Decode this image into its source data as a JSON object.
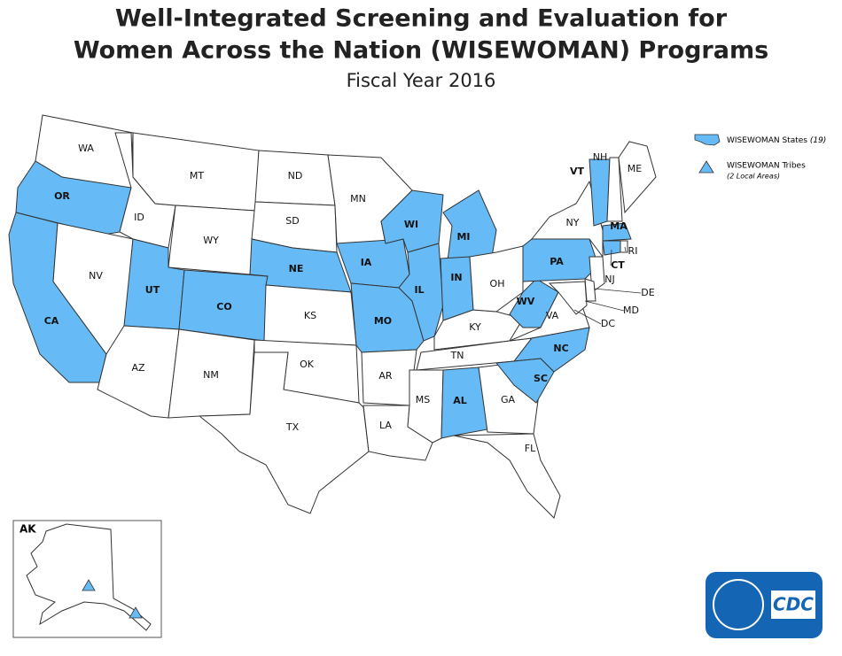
{
  "header": {
    "title_lines": [
      "Well-Integrated Screening and Evaluation for",
      "Women Across the Nation (WISEWOMAN) Programs"
    ],
    "subtitle": "Fiscal Year 2016"
  },
  "legend": [
    {
      "label": "WISEWOMAN States",
      "note": "(19)"
    },
    {
      "label": "WISEWOMAN Tribes",
      "note": "(2 Local Areas)"
    }
  ],
  "highlight_color": "#66bbf7",
  "states": [
    {
      "label": "WA",
      "wisewoman": false
    },
    {
      "label": "OR",
      "wisewoman": true
    },
    {
      "label": "CA",
      "wisewoman": true
    },
    {
      "label": "NV",
      "wisewoman": false
    },
    {
      "label": "ID",
      "wisewoman": false
    },
    {
      "label": "MT",
      "wisewoman": false
    },
    {
      "label": "WY",
      "wisewoman": false
    },
    {
      "label": "UT",
      "wisewoman": true
    },
    {
      "label": "CO",
      "wisewoman": true
    },
    {
      "label": "AZ",
      "wisewoman": false
    },
    {
      "label": "NM",
      "wisewoman": false
    },
    {
      "label": "ND",
      "wisewoman": false
    },
    {
      "label": "SD",
      "wisewoman": false
    },
    {
      "label": "NE",
      "wisewoman": true
    },
    {
      "label": "KS",
      "wisewoman": false
    },
    {
      "label": "OK",
      "wisewoman": false
    },
    {
      "label": "TX",
      "wisewoman": false
    },
    {
      "label": "MN",
      "wisewoman": false
    },
    {
      "label": "IA",
      "wisewoman": true
    },
    {
      "label": "MO",
      "wisewoman": true
    },
    {
      "label": "AR",
      "wisewoman": false
    },
    {
      "label": "LA",
      "wisewoman": false
    },
    {
      "label": "WI",
      "wisewoman": true
    },
    {
      "label": "IL",
      "wisewoman": true
    },
    {
      "label": "MS",
      "wisewoman": false
    },
    {
      "label": "MI",
      "wisewoman": true
    },
    {
      "label": "IN",
      "wisewoman": true
    },
    {
      "label": "KY",
      "wisewoman": false
    },
    {
      "label": "TN",
      "wisewoman": false
    },
    {
      "label": "AL",
      "wisewoman": true
    },
    {
      "label": "OH",
      "wisewoman": false
    },
    {
      "label": "GA",
      "wisewoman": false
    },
    {
      "label": "FL",
      "wisewoman": false
    },
    {
      "label": "WV",
      "wisewoman": true
    },
    {
      "label": "VA",
      "wisewoman": false
    },
    {
      "label": "NC",
      "wisewoman": true
    },
    {
      "label": "SC",
      "wisewoman": true
    },
    {
      "label": "PA",
      "wisewoman": true
    },
    {
      "label": "NY",
      "wisewoman": false
    },
    {
      "label": "VT",
      "wisewoman": true
    },
    {
      "label": "NH",
      "wisewoman": false
    },
    {
      "label": "ME",
      "wisewoman": false
    },
    {
      "label": "MA",
      "wisewoman": true
    },
    {
      "label": "CT",
      "wisewoman": true
    },
    {
      "label": "RI",
      "wisewoman": false
    },
    {
      "label": "NJ",
      "wisewoman": false
    },
    {
      "label": "DE",
      "wisewoman": false
    },
    {
      "label": "MD",
      "wisewoman": false
    },
    {
      "label": "DC",
      "wisewoman": false
    }
  ],
  "alaska": {
    "label": "AK"
  },
  "logo": {
    "text": "CDC"
  }
}
